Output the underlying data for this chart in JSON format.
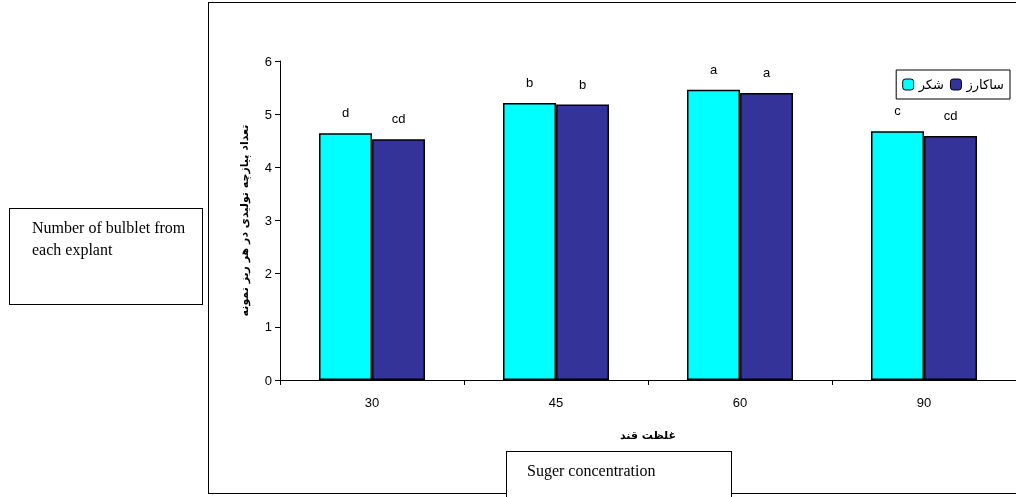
{
  "chart_data": {
    "type": "bar",
    "xlabel": "غلظت قند",
    "ylabel": "تعداد پیازچه تولیدی در هر ریز نمونه",
    "categories": [
      "30",
      "45",
      "60",
      "90"
    ],
    "series": [
      {
        "name": "شکر",
        "color": "#00ffff",
        "values": [
          4.64,
          5.21,
          5.46,
          4.68
        ],
        "value_labels": [
          "d",
          "b",
          "a",
          "c"
        ]
      },
      {
        "name": "ساکارز",
        "color": "#333399",
        "values": [
          4.53,
          5.18,
          5.4,
          4.59
        ],
        "value_labels": [
          "cd",
          "b",
          "a",
          "cd"
        ]
      }
    ],
    "ylim": [
      0,
      6
    ],
    "yticks": [
      0,
      1,
      2,
      3,
      4,
      5,
      6
    ],
    "grid": false,
    "legend": "top right",
    "annotations": [
      "Number of bulblet from each explant",
      "Suger concentration"
    ]
  }
}
